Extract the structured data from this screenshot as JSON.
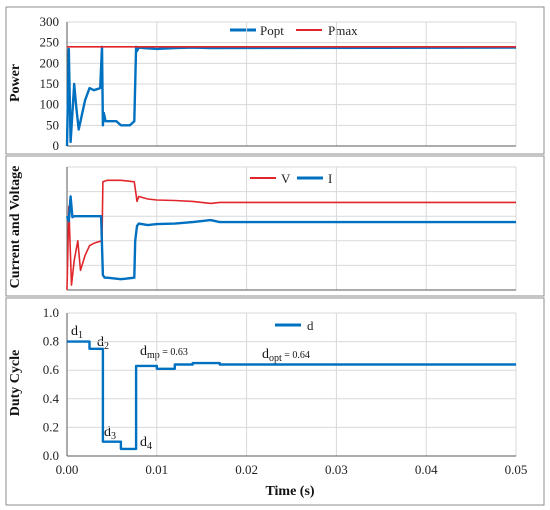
{
  "colors": {
    "blue": "#0070C0",
    "red": "#E0262B",
    "grid": "#d9d9d9",
    "frame": "#7f7f7f"
  },
  "chart_data": [
    {
      "id": "power",
      "type": "line",
      "ylabel": "Power",
      "xlabel": "",
      "xlim": [
        0,
        0.05
      ],
      "ylim": [
        0,
        300
      ],
      "yticks": [
        0,
        50,
        100,
        150,
        200,
        250,
        300
      ],
      "legend": "top-right",
      "grid": true,
      "series": [
        {
          "name": "Popt",
          "color": "#0070C0",
          "x": [
            0,
            0.0002,
            0.0004,
            0.0006,
            0.0008,
            0.001,
            0.0013,
            0.0016,
            0.002,
            0.0025,
            0.003,
            0.0037,
            0.0039,
            0.004,
            0.0041,
            0.0043,
            0.0045,
            0.0055,
            0.006,
            0.007,
            0.0075,
            0.0077,
            0.0078,
            0.008,
            0.0085,
            0.01,
            0.012,
            0.014,
            0.016,
            0.05
          ],
          "y": [
            0,
            235,
            10,
            80,
            150,
            100,
            40,
            70,
            110,
            140,
            135,
            140,
            240,
            50,
            80,
            60,
            60,
            60,
            50,
            50,
            60,
            240,
            230,
            238,
            237,
            235,
            237,
            238,
            237,
            238
          ]
        },
        {
          "name": "Pmax",
          "color": "#E0262B",
          "x": [
            0,
            0.05
          ],
          "y": [
            240,
            240
          ]
        }
      ]
    },
    {
      "id": "current-voltage",
      "type": "line",
      "ylabel": "Current and Voltage",
      "xlabel": "",
      "xlim": [
        0,
        0.05
      ],
      "ylim": [
        0,
        25
      ],
      "yticks": [],
      "legend": "top-right",
      "grid": true,
      "series": [
        {
          "name": "V",
          "color": "#E0262B",
          "x": [
            0,
            0.0002,
            0.0005,
            0.0008,
            0.0012,
            0.0015,
            0.002,
            0.0025,
            0.003,
            0.0035,
            0.0039,
            0.004,
            0.0045,
            0.006,
            0.0075,
            0.0078,
            0.008,
            0.009,
            0.01,
            0.012,
            0.014,
            0.015,
            0.016,
            0.017,
            0.05
          ],
          "y": [
            0,
            17,
            1,
            6,
            10,
            4,
            7,
            9,
            9.5,
            9.8,
            10,
            22,
            22.3,
            22.3,
            22,
            18,
            19,
            18.5,
            18.3,
            18.2,
            18,
            17.8,
            17.6,
            17.8,
            17.8
          ]
        },
        {
          "name": "I",
          "color": "#0070C0",
          "x": [
            0,
            0.0002,
            0.0004,
            0.0006,
            0.0008,
            0.0015,
            0.003,
            0.0038,
            0.004,
            0.0042,
            0.0045,
            0.006,
            0.0075,
            0.0076,
            0.0078,
            0.008,
            0.009,
            0.01,
            0.012,
            0.014,
            0.015,
            0.016,
            0.017,
            0.05
          ],
          "y": [
            15,
            14,
            19,
            14.8,
            15,
            15,
            15,
            15,
            3,
            2.5,
            2.5,
            2.2,
            2.5,
            10,
            13,
            13.5,
            13.2,
            13.4,
            13.5,
            13.8,
            14,
            14.2,
            13.8,
            13.8
          ]
        }
      ]
    },
    {
      "id": "duty-cycle",
      "type": "line",
      "ylabel": "Duty Cycle",
      "xlabel": "Time (s)",
      "xlim": [
        0,
        0.05
      ],
      "ylim": [
        0,
        1.0
      ],
      "yticks": [
        "0.0",
        "0.2",
        "0.4",
        "0.6",
        "0.8",
        "1.0"
      ],
      "xticks": [
        "0.00",
        "0.01",
        "0.02",
        "0.03",
        "0.04",
        "0.05"
      ],
      "legend": "top-right",
      "grid": true,
      "series": [
        {
          "name": "d",
          "color": "#0070C0",
          "x": [
            0,
            0.0025,
            0.0025,
            0.004,
            0.004,
            0.006,
            0.006,
            0.0077,
            0.0077,
            0.01,
            0.01,
            0.012,
            0.012,
            0.014,
            0.014,
            0.017,
            0.017,
            0.05
          ],
          "y": [
            0.8,
            0.8,
            0.75,
            0.75,
            0.1,
            0.1,
            0.05,
            0.05,
            0.63,
            0.63,
            0.61,
            0.61,
            0.64,
            0.64,
            0.65,
            0.65,
            0.64,
            0.64
          ]
        }
      ],
      "annotations": {
        "d1": {
          "main": "d",
          "sub": "1"
        },
        "d2": {
          "main": "d",
          "sub": "2"
        },
        "d3": {
          "main": "d",
          "sub": "3"
        },
        "d4": {
          "main": "d",
          "sub": "4"
        },
        "dmp": {
          "main": "d",
          "sub": "mp",
          "rest": " = 0.63"
        },
        "dopt": {
          "main": "d",
          "sub": "opt",
          "rest": " = 0.64"
        }
      }
    }
  ]
}
